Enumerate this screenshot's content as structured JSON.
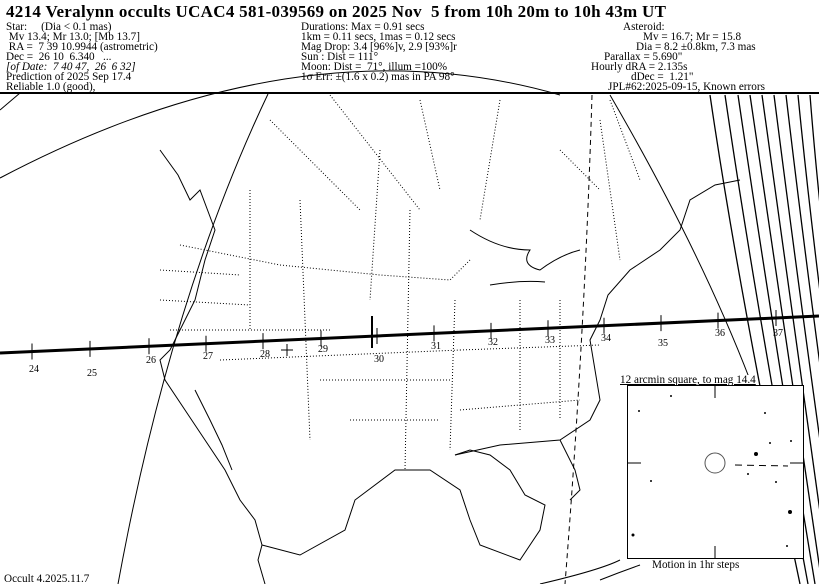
{
  "title": "4214 Veralynn occults UCAC4 581-039569 on 2025 Nov  5 from 10h 20m to 10h 43m UT",
  "star": {
    "heading": "Star:     (Dia < 0.1 mas)",
    "mags": " Mv 13.4; Mr 13.0; [Mb 13.7]",
    "ra": " RA =  7 39 10.9944 (astrometric)",
    "dec": "Dec =  26 10  6.340   ...",
    "of_date": "[of Date:  7 40 47,  26  6 32]",
    "prediction": "Prediction of 2025 Sep 17.4",
    "reliable": "Reliable 1.0 (good),"
  },
  "event": {
    "durations": "Durations: Max = 0.91 secs",
    "km": "1km = 0.11 secs, 1mas = 0.12 secs",
    "mag_drop": "Mag Drop: 3.4 [96%]v, 2.9 [93%]r",
    "sun": "Sun : Dist = 111°",
    "moon": "Moon: Dist =  71°, illum =100%",
    "err": "1σ Err: ±(1.6 x 0.2) mas in PA 98°"
  },
  "asteroid": {
    "heading": "Asteroid:",
    "mags": "Mv = 16.7; Mr = 15.8",
    "dia": "Dia = 8.2 ±0.8km, 7.3 mas",
    "parallax": "Parallax = 5.690\"",
    "dra": "Hourly dRA = 2.135s",
    "ddec": "dDec =  1.21\"",
    "orbit": "JPL#62:2025-09-15, Known errors"
  },
  "path_ticks": [
    "24",
    "25",
    "26",
    "27",
    "28",
    "29",
    "30",
    "31",
    "32",
    "33",
    "34",
    "35",
    "36",
    "37"
  ],
  "inset": {
    "caption": "12 arcmin square, to mag 14.4",
    "motion": "Motion in 1hr steps"
  },
  "footer": "Occult 4.2025.11.7"
}
